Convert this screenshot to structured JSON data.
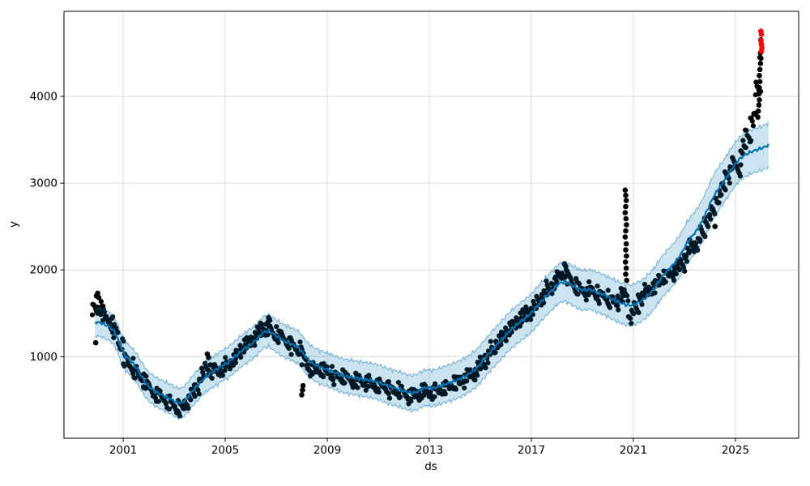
{
  "chart_data": {
    "type": "scatter",
    "title": "",
    "xlabel": "ds",
    "ylabel": "y",
    "x_ticks": [
      2001,
      2005,
      2009,
      2013,
      2017,
      2021,
      2025
    ],
    "y_ticks": [
      1000,
      2000,
      3000,
      4000
    ],
    "x_range": [
      1998.68,
      2027.48
    ],
    "y_range": [
      60,
      4980
    ],
    "grid": true,
    "legend_position": "none",
    "colors": {
      "actual_points": "#000000",
      "anomaly_points": "#f40b0b",
      "forecast_line": "#0072b2",
      "uncertainty_band": "#0072b2",
      "band_opacity": 0.2,
      "grid": "#dcdcdc",
      "axis": "#000000",
      "background": "#ffffff"
    },
    "series": [
      {
        "name": "actual-observations",
        "type": "scatter",
        "color_key": "actual_points"
      },
      {
        "name": "forecast-yhat",
        "type": "line",
        "color_key": "forecast_line"
      },
      {
        "name": "uncertainty-interval",
        "type": "band",
        "color_key": "uncertainty_band"
      },
      {
        "name": "anomalies",
        "type": "scatter",
        "color_key": "anomaly_points"
      }
    ],
    "forecast": {
      "x_start": 1999.9,
      "x_step": 0.2,
      "band_halfwidth_start": 160,
      "band_halfwidth_end": 255,
      "yhat": [
        1400,
        1390,
        1370,
        1340,
        1270,
        1120,
        1000,
        950,
        880,
        780,
        690,
        630,
        590,
        560,
        535,
        505,
        470,
        465,
        520,
        600,
        660,
        730,
        780,
        820,
        860,
        900,
        930,
        980,
        1030,
        1080,
        1120,
        1160,
        1220,
        1280,
        1300,
        1260,
        1220,
        1180,
        1160,
        1130,
        1100,
        1020,
        950,
        910,
        880,
        860,
        840,
        815,
        790,
        775,
        765,
        755,
        745,
        735,
        725,
        715,
        695,
        670,
        650,
        635,
        615,
        595,
        578,
        590,
        625,
        645,
        635,
        648,
        668,
        688,
        708,
        730,
        758,
        792,
        832,
        880,
        950,
        1020,
        1090,
        1150,
        1215,
        1280,
        1335,
        1385,
        1430,
        1475,
        1535,
        1605,
        1670,
        1730,
        1790,
        1845,
        1865,
        1840,
        1805,
        1775,
        1765,
        1775,
        1755,
        1730,
        1705,
        1675,
        1645,
        1620,
        1600,
        1590,
        1610,
        1640,
        1685,
        1745,
        1820,
        1910,
        1980,
        2040,
        2110,
        2200,
        2310,
        2390,
        2460,
        2560,
        2690,
        2820,
        2920,
        3000,
        3090,
        3180,
        3260,
        3310,
        3345,
        3370,
        3390,
        3410,
        3440
      ]
    },
    "actuals": {
      "x_start": 1999.9,
      "x_step": 0.2,
      "vertical_spread": 85,
      "points_per_step": 7,
      "center": [
        1550,
        1560,
        1460,
        1400,
        1300,
        1130,
        970,
        890,
        820,
        750,
        680,
        610,
        565,
        540,
        500,
        460,
        415,
        405,
        470,
        570,
        650,
        770,
        860,
        840,
        830,
        860,
        900,
        960,
        1030,
        1105,
        1155,
        1210,
        1265,
        1335,
        1325,
        1260,
        1245,
        1210,
        1160,
        1110,
        1070,
        975,
        870,
        855,
        860,
        830,
        815,
        775,
        765,
        750,
        725,
        725,
        725,
        695,
        695,
        675,
        665,
        650,
        610,
        605,
        595,
        550,
        545,
        570,
        590,
        600,
        600,
        610,
        620,
        650,
        680,
        700,
        730,
        760,
        800,
        860,
        930,
        1020,
        1080,
        1170,
        1230,
        1310,
        1355,
        1425,
        1450,
        1515,
        1565,
        1645,
        1700,
        1780,
        1850,
        1930,
        1960,
        1900,
        1825,
        1775,
        1745,
        1775,
        1735,
        1700,
        1685,
        1635,
        1620,
        1690,
        1710,
        1470,
        1550,
        1680,
        1740,
        1785,
        1835,
        1900,
        1920,
        1955,
        2005,
        2075,
        2170,
        2265,
        2310,
        2420,
        2565,
        2670,
        2815,
        2935,
        3090,
        3220,
        3160,
        3400,
        3540,
        3760,
        4080
      ]
    },
    "outlier_points": [
      [
        1999.92,
        1160
      ],
      [
        1999.95,
        1700
      ],
      [
        2000.0,
        1730
      ],
      [
        2000.05,
        1680
      ],
      [
        2004.3,
        1030
      ],
      [
        2004.35,
        990
      ],
      [
        2006.7,
        1450
      ],
      [
        2006.75,
        1420
      ],
      [
        2008.0,
        560
      ],
      [
        2008.03,
        615
      ],
      [
        2008.05,
        665
      ],
      [
        2018.3,
        2070
      ],
      [
        2018.35,
        2040
      ],
      [
        2020.68,
        2920
      ],
      [
        2020.7,
        2860
      ],
      [
        2020.72,
        2800
      ],
      [
        2020.7,
        2730
      ],
      [
        2020.68,
        2660
      ],
      [
        2020.71,
        2590
      ],
      [
        2020.73,
        2520
      ],
      [
        2020.7,
        2450
      ],
      [
        2020.68,
        2380
      ],
      [
        2020.72,
        2300
      ],
      [
        2020.7,
        2230
      ],
      [
        2020.73,
        2160
      ],
      [
        2020.69,
        2090
      ],
      [
        2020.72,
        2020
      ],
      [
        2020.7,
        1950
      ],
      [
        2020.74,
        1880
      ],
      [
        2024.2,
        2500
      ],
      [
        2025.88,
        3760
      ],
      [
        2025.9,
        3830
      ],
      [
        2025.92,
        3900
      ],
      [
        2025.94,
        3960
      ],
      [
        2025.92,
        4030
      ],
      [
        2025.94,
        4100
      ],
      [
        2025.96,
        4170
      ],
      [
        2025.94,
        4240
      ],
      [
        2025.96,
        4310
      ],
      [
        2025.98,
        4380
      ],
      [
        2025.96,
        4450
      ],
      [
        2025.98,
        4500
      ],
      [
        2026.0,
        4440
      ],
      [
        2026.0,
        4650
      ]
    ],
    "anomaly_points": [
      [
        2026.0,
        4750
      ],
      [
        2026.02,
        4715
      ],
      [
        2026.0,
        4640
      ],
      [
        2026.02,
        4600
      ],
      [
        2026.04,
        4560
      ],
      [
        2026.02,
        4520
      ]
    ]
  }
}
